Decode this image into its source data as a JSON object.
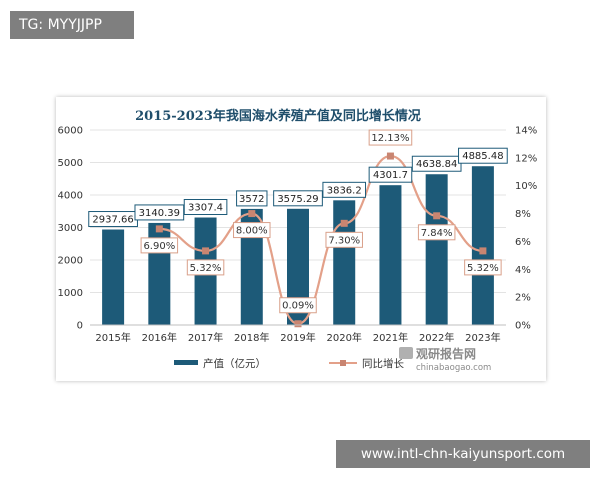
{
  "tag": {
    "text": "TG: MYYJJPP"
  },
  "url_badge": {
    "text": "www.intl-chn-kaiyunsport.com"
  },
  "watermark": {
    "brand": "观研报告网",
    "domain": "chinabaogao.com"
  },
  "colors": {
    "bar": "#1d5a78",
    "line": "#e3a089",
    "marker": "#c98571",
    "title": "#1f4e6b"
  },
  "chart_data": {
    "type": "bar",
    "title": "2015-2023年我国海水养殖产值及同比增长情况",
    "categories": [
      "2015年",
      "2016年",
      "2017年",
      "2018年",
      "2019年",
      "2020年",
      "2021年",
      "2022年",
      "2023年"
    ],
    "series": [
      {
        "name": "产值（亿元）",
        "type": "bar",
        "axis": "left",
        "values": [
          2937.66,
          3140.39,
          3307.4,
          3572,
          3575.29,
          3836.2,
          4301.7,
          4638.84,
          4885.48
        ],
        "labels": [
          "2937.66",
          "3140.39",
          "3307.4",
          "3572",
          "3575.29",
          "3836.2",
          "4301.7",
          "4638.84",
          "4885.48"
        ]
      },
      {
        "name": "同比增长",
        "type": "line",
        "axis": "right",
        "values": [
          null,
          6.9,
          5.32,
          8.0,
          0.09,
          7.3,
          12.13,
          7.84,
          5.32
        ],
        "labels": [
          "",
          "6.90%",
          "5.32%",
          "8.00%",
          "0.09%",
          "7.30%",
          "12.13%",
          "7.84%",
          "5.32%"
        ]
      }
    ],
    "y_left": {
      "ylim": [
        0,
        6000
      ],
      "ticks": [
        "0",
        "1000",
        "2000",
        "3000",
        "4000",
        "5000",
        "6000"
      ]
    },
    "y_right": {
      "ylim": [
        0,
        14
      ],
      "ticks": [
        "0%",
        "2%",
        "4%",
        "6%",
        "8%",
        "10%",
        "12%",
        "14%"
      ]
    },
    "grid": true,
    "legend": {
      "position": "bottom"
    }
  }
}
